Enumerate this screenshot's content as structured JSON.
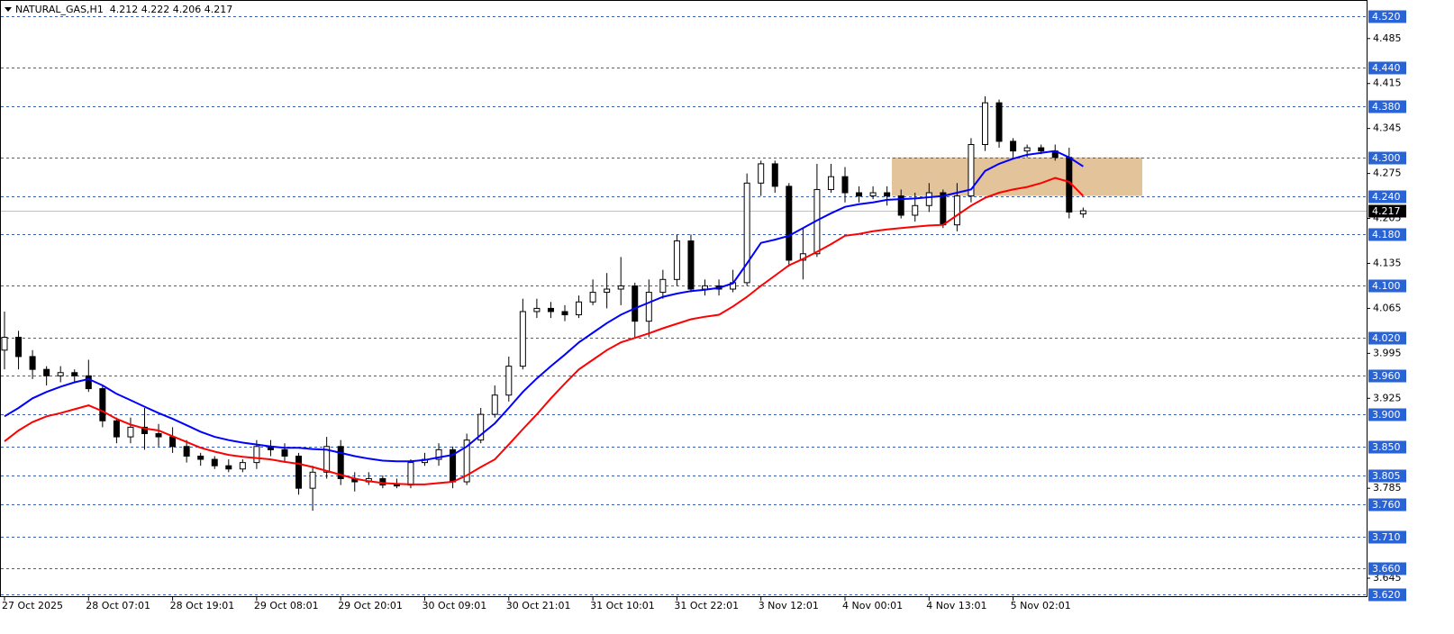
{
  "chart_data": {
    "type": "candlestick",
    "title": "NATURAL_GAS,H1  4.212 4.222 4.206 4.217",
    "categories": [
      "27 Oct 2025",
      null,
      null,
      null,
      null,
      null,
      "28 Oct 07:01",
      null,
      null,
      null,
      null,
      null,
      "28 Oct 19:01",
      null,
      null,
      null,
      null,
      null,
      "29 Oct 08:01",
      null,
      null,
      null,
      null,
      null,
      "29 Oct 20:01",
      null,
      null,
      null,
      null,
      null,
      "30 Oct 09:01",
      null,
      null,
      null,
      null,
      null,
      "30 Oct 21:01",
      null,
      null,
      null,
      null,
      null,
      "31 Oct 10:01",
      null,
      null,
      null,
      null,
      null,
      "31 Oct 22:01",
      null,
      null,
      null,
      null,
      null,
      "3 Nov 12:01",
      null,
      null,
      null,
      null,
      null,
      "4 Nov 00:01",
      null,
      null,
      null,
      null,
      null,
      "4 Nov 13:01",
      null,
      null,
      null,
      null,
      null,
      "5 Nov 02:01",
      null,
      null,
      null,
      null,
      null
    ],
    "open": [
      4.0,
      4.02,
      3.99,
      3.97,
      3.96,
      3.965,
      3.96,
      3.94,
      3.89,
      3.865,
      3.88,
      3.87,
      3.865,
      3.85,
      3.835,
      3.83,
      3.82,
      3.815,
      3.825,
      3.85,
      3.845,
      3.835,
      3.785,
      3.81,
      3.85,
      3.8,
      3.795,
      3.8,
      3.79,
      3.79,
      3.825,
      3.83,
      3.845,
      3.795,
      3.86,
      3.9,
      3.93,
      3.975,
      4.06,
      4.065,
      4.06,
      4.055,
      4.075,
      4.09,
      4.095,
      4.1,
      4.045,
      4.09,
      4.11,
      4.17,
      4.095,
      4.1,
      4.095,
      4.105,
      4.26,
      4.29,
      4.255,
      4.14,
      4.15,
      4.25,
      4.27,
      4.245,
      4.24,
      4.245,
      4.24,
      4.21,
      4.225,
      4.245,
      4.195,
      4.24,
      4.32,
      4.385,
      4.325,
      4.31,
      4.315,
      4.31,
      4.3,
      4.212
    ],
    "high": [
      4.06,
      4.03,
      4.0,
      3.975,
      3.975,
      3.97,
      3.985,
      3.945,
      3.895,
      3.895,
      3.91,
      3.885,
      3.88,
      3.86,
      3.84,
      3.835,
      3.83,
      3.83,
      3.86,
      3.86,
      3.855,
      3.84,
      3.82,
      3.865,
      3.86,
      3.81,
      3.81,
      3.805,
      3.8,
      3.83,
      3.84,
      3.855,
      3.85,
      3.87,
      3.91,
      3.945,
      3.99,
      4.08,
      4.08,
      4.075,
      4.07,
      4.085,
      4.11,
      4.12,
      4.145,
      4.105,
      4.11,
      4.125,
      4.18,
      4.18,
      4.11,
      4.11,
      4.125,
      4.275,
      4.295,
      4.295,
      4.26,
      4.19,
      4.29,
      4.29,
      4.285,
      4.255,
      4.255,
      4.255,
      4.25,
      4.245,
      4.26,
      4.25,
      4.26,
      4.33,
      4.395,
      4.39,
      4.33,
      4.32,
      4.32,
      4.32,
      4.315,
      4.222
    ],
    "low": [
      3.97,
      3.97,
      3.955,
      3.945,
      3.95,
      3.95,
      3.935,
      3.88,
      3.855,
      3.855,
      3.845,
      3.85,
      3.84,
      3.825,
      3.82,
      3.815,
      3.81,
      3.81,
      3.815,
      3.835,
      3.825,
      3.775,
      3.75,
      3.8,
      3.79,
      3.78,
      3.79,
      3.785,
      3.785,
      3.785,
      3.82,
      3.82,
      3.785,
      3.79,
      3.855,
      3.895,
      3.92,
      3.97,
      4.05,
      4.05,
      4.045,
      4.05,
      4.07,
      4.065,
      4.07,
      4.02,
      4.02,
      4.08,
      4.1,
      4.09,
      4.085,
      4.085,
      4.09,
      4.1,
      4.24,
      4.245,
      4.13,
      4.11,
      4.145,
      4.245,
      4.23,
      4.23,
      4.235,
      4.225,
      4.205,
      4.2,
      4.215,
      4.19,
      4.185,
      4.23,
      4.31,
      4.315,
      4.3,
      4.3,
      4.305,
      4.295,
      4.205,
      4.206
    ],
    "close": [
      4.02,
      3.99,
      3.97,
      3.96,
      3.965,
      3.96,
      3.94,
      3.89,
      3.865,
      3.88,
      3.87,
      3.865,
      3.85,
      3.835,
      3.83,
      3.82,
      3.815,
      3.825,
      3.85,
      3.845,
      3.835,
      3.785,
      3.81,
      3.85,
      3.8,
      3.795,
      3.8,
      3.79,
      3.79,
      3.825,
      3.83,
      3.845,
      3.795,
      3.86,
      3.9,
      3.93,
      3.975,
      4.06,
      4.065,
      4.06,
      4.055,
      4.075,
      4.09,
      4.095,
      4.1,
      4.045,
      4.09,
      4.11,
      4.17,
      4.095,
      4.1,
      4.095,
      4.105,
      4.26,
      4.29,
      4.255,
      4.14,
      4.15,
      4.25,
      4.27,
      4.245,
      4.24,
      4.245,
      4.24,
      4.21,
      4.225,
      4.245,
      4.195,
      4.24,
      4.32,
      4.385,
      4.325,
      4.31,
      4.315,
      4.31,
      4.3,
      4.215,
      4.217
    ],
    "up_color": "#ffffff",
    "down_color": "#000000",
    "lines": [
      {
        "color": "#0000ff",
        "values": [
          3.897,
          3.91,
          3.925,
          3.935,
          3.943,
          3.95,
          3.955,
          3.945,
          3.932,
          3.922,
          3.912,
          3.902,
          3.893,
          3.883,
          3.873,
          3.865,
          3.86,
          3.856,
          3.853,
          3.85,
          3.848,
          3.848,
          3.846,
          3.845,
          3.84,
          3.835,
          3.831,
          3.828,
          3.827,
          3.827,
          3.829,
          3.833,
          3.837,
          3.85,
          3.868,
          3.886,
          3.91,
          3.935,
          3.956,
          3.975,
          3.993,
          4.012,
          4.027,
          4.042,
          4.055,
          4.065,
          4.074,
          4.083,
          4.088,
          4.092,
          4.094,
          4.097,
          4.104,
          4.135,
          4.167,
          4.172,
          4.178,
          4.19,
          4.202,
          4.213,
          4.223,
          4.227,
          4.23,
          4.234,
          4.235,
          4.236,
          4.238,
          4.24,
          4.245,
          4.25,
          4.279,
          4.29,
          4.298,
          4.304,
          4.307,
          4.31,
          4.3,
          4.286
        ]
      },
      {
        "color": "#ff0000",
        "values": [
          3.858,
          3.875,
          3.888,
          3.897,
          3.902,
          3.908,
          3.914,
          3.905,
          3.893,
          3.884,
          3.878,
          3.875,
          3.866,
          3.857,
          3.848,
          3.842,
          3.837,
          3.834,
          3.832,
          3.83,
          3.826,
          3.823,
          3.818,
          3.812,
          3.806,
          3.8,
          3.796,
          3.793,
          3.792,
          3.791,
          3.791,
          3.793,
          3.795,
          3.805,
          3.818,
          3.83,
          3.853,
          3.877,
          3.9,
          3.925,
          3.948,
          3.97,
          3.985,
          4.0,
          4.012,
          4.019,
          4.026,
          4.034,
          4.041,
          4.048,
          4.052,
          4.055,
          4.068,
          4.083,
          4.1,
          4.116,
          4.132,
          4.142,
          4.153,
          4.165,
          4.178,
          4.181,
          4.185,
          4.188,
          4.19,
          4.192,
          4.194,
          4.195,
          4.21,
          4.225,
          4.237,
          4.245,
          4.25,
          4.254,
          4.26,
          4.268,
          4.262,
          4.24
        ]
      }
    ],
    "zone": {
      "low": 4.24,
      "high": 4.3,
      "color": "#deb887"
    },
    "ylim": [
      3.617,
      4.545
    ],
    "yticks": [
      4.485,
      4.415,
      4.345,
      4.275,
      4.205,
      4.135,
      4.065,
      3.995,
      3.925,
      3.785,
      3.645
    ],
    "levels": [
      {
        "value": 4.52,
        "label": "4.520"
      },
      {
        "value": 4.44,
        "label": "4.440"
      },
      {
        "value": 4.38,
        "label": "4.380"
      },
      {
        "value": 4.3,
        "label": "4.300"
      },
      {
        "value": 4.24,
        "label": "4.240"
      },
      {
        "value": 4.18,
        "label": "4.180"
      },
      {
        "value": 4.1,
        "label": "4.100"
      },
      {
        "value": 4.02,
        "label": "4.020"
      },
      {
        "value": 3.96,
        "label": "3.960"
      },
      {
        "value": 3.9,
        "label": "3.900"
      },
      {
        "value": 3.85,
        "label": "3.850"
      },
      {
        "value": 3.805,
        "label": "3.805"
      },
      {
        "value": 3.76,
        "label": "3.760"
      },
      {
        "value": 3.71,
        "label": "3.710"
      },
      {
        "value": 3.66,
        "label": "3.660"
      },
      {
        "value": 3.62,
        "label": "3.620"
      }
    ],
    "level_color": "#2a64d4",
    "last": 4.217
  }
}
